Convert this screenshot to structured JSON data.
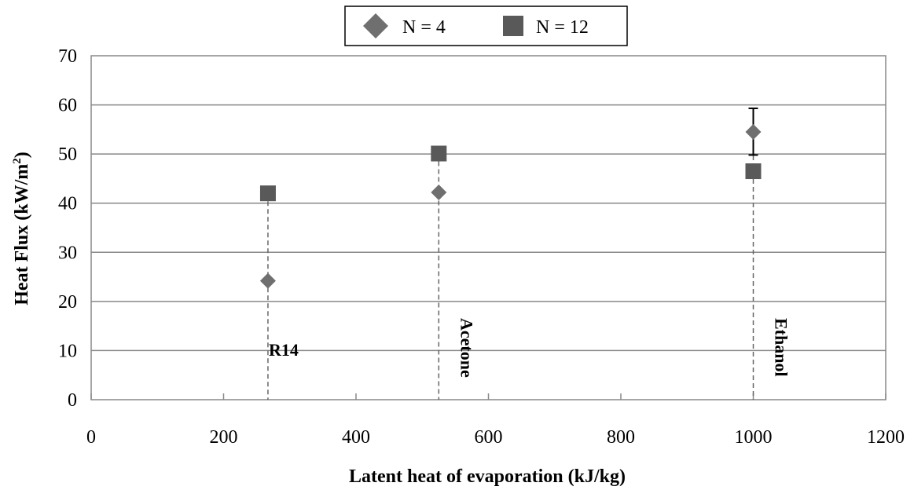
{
  "chart_data": {
    "type": "scatter",
    "xlabel": "Latent heat of evaporation (kJ/kg)",
    "ylabel_main": "Heat  Flux (kW/m",
    "ylabel_sup": "2",
    "ylabel_close": ")",
    "xlim": [
      0,
      1200
    ],
    "ylim": [
      0,
      70
    ],
    "xticks": [
      "0",
      "200",
      "400",
      "600",
      "800",
      "1000",
      "1200"
    ],
    "yticks": [
      "0",
      "10",
      "20",
      "30",
      "40",
      "50",
      "60",
      "70"
    ],
    "grid": "horizontal",
    "legend_position": "top-center",
    "series": [
      {
        "name": "N = 4",
        "marker": "diamond",
        "color": "#6f6f6f",
        "points": [
          {
            "x": 267,
            "y": 24.2
          },
          {
            "x": 525,
            "y": 42.2
          },
          {
            "x": 1000,
            "y": 54.5,
            "err_high": 59.3,
            "err_low": 49.8
          }
        ]
      },
      {
        "name": "N = 12",
        "marker": "square",
        "color": "#595959",
        "points": [
          {
            "x": 267,
            "y": 42.0
          },
          {
            "x": 525,
            "y": 50.1
          },
          {
            "x": 1000,
            "y": 46.5
          }
        ]
      }
    ],
    "fluid_markers": [
      {
        "label": "R14",
        "x": 267,
        "orientation": "horizontal"
      },
      {
        "label": "Acetone",
        "x": 525,
        "orientation": "vertical"
      },
      {
        "label": "Ethanol",
        "x": 1000,
        "orientation": "vertical"
      }
    ]
  }
}
